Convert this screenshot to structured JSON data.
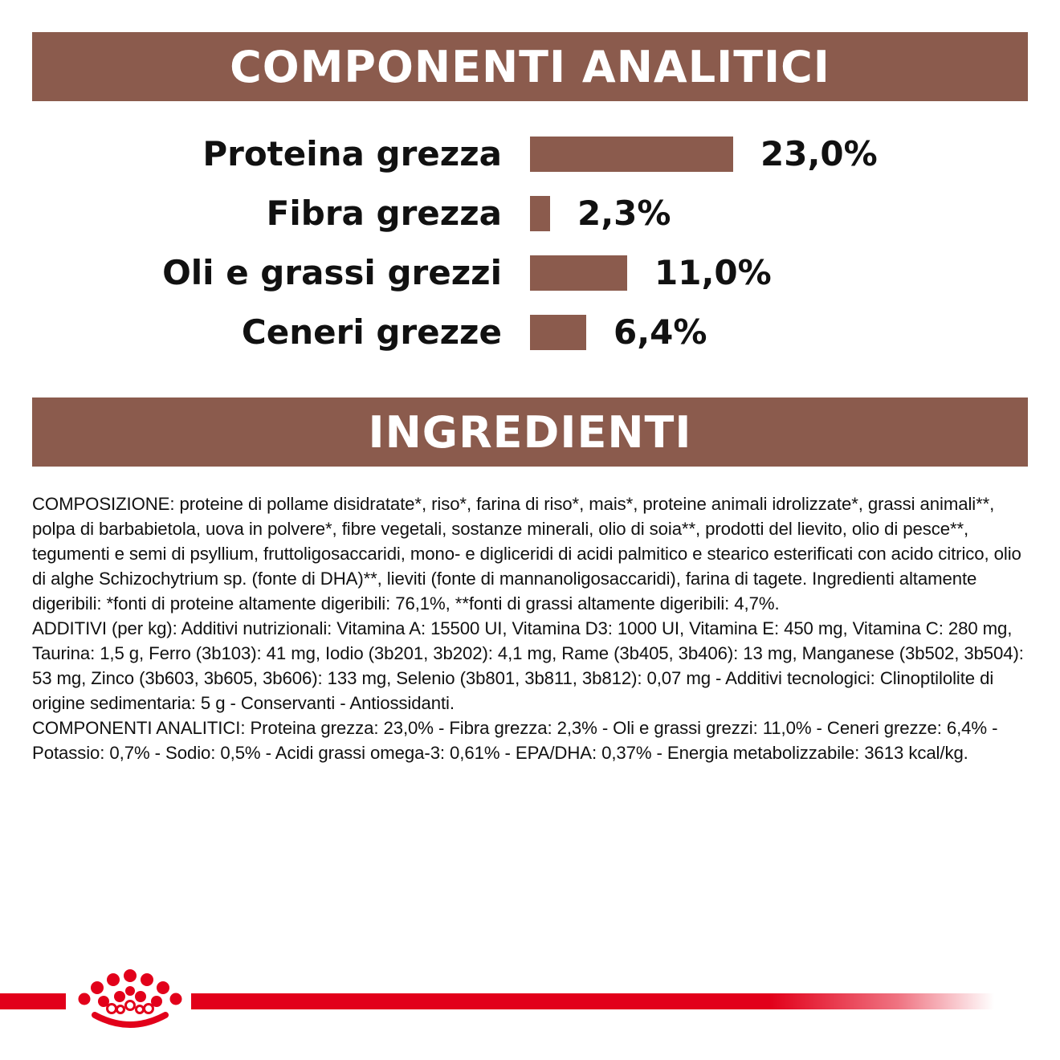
{
  "colors": {
    "banner": "#8b5b4d",
    "bar": "#8b5b4d",
    "brand_red": "#e2001a"
  },
  "analytic": {
    "title": "COMPONENTI ANALITICI",
    "rows": [
      {
        "label": "Proteina grezza",
        "value_text": "23,0%",
        "value": 23.0
      },
      {
        "label": "Fibra grezza",
        "value_text": "2,3%",
        "value": 2.3
      },
      {
        "label": "Oli e grassi grezzi",
        "value_text": "11,0%",
        "value": 11.0
      },
      {
        "label": "Ceneri grezze",
        "value_text": "6,4%",
        "value": 6.4
      }
    ]
  },
  "ingredients": {
    "title": "INGREDIENTI",
    "composition": "COMPOSIZIONE: proteine di pollame disidratate*, riso*, farina di riso*, mais*, proteine animali idrolizzate*, grassi animali**, polpa di barbabietola, uova in polvere*, fibre vegetali, sostanze minerali, olio di soia**, prodotti del lievito, olio di pesce**, tegumenti e semi di psyllium, fruttoligosaccaridi, mono- e digliceridi di acidi palmitico e stearico esterificati con acido citrico, olio di alghe Schizochytrium sp. (fonte di DHA)**, lieviti (fonte di mannanoligosaccaridi), farina di tagete. Ingredienti altamente digeribili: *fonti di proteine altamente digeribili: 76,1%, **fonti di grassi altamente digeribili: 4,7%.",
    "additives": "ADDITIVI (per kg): Additivi nutrizionali: Vitamina A: 15500 UI, Vitamina D3: 1000 UI, Vitamina E: 450 mg, Vitamina C: 280 mg, Taurina: 1,5 g, Ferro (3b103): 41 mg, Iodio (3b201, 3b202): 4,1 mg, Rame (3b405, 3b406): 13 mg, Manganese (3b502, 3b504): 53 mg, Zinco (3b603, 3b605, 3b606): 133 mg, Selenio (3b801, 3b811, 3b812): 0,07 mg - Additivi tecnologici: Clinoptilolite di origine sedimentaria: 5 g - Conservanti - Antiossidanti.",
    "analytic_components": "COMPONENTI ANALITICI: Proteina grezza: 23,0% - Fibra grezza: 2,3% - Oli e grassi grezzi: 11,0% - Ceneri grezze: 6,4% - Potassio: 0,7% - Sodio: 0,5% - Acidi grassi omega-3: 0,61% - EPA/DHA: 0,37% - Energia metabolizzabile: 3613 kcal/kg."
  },
  "footer": {
    "logo_icon": "crown-icon"
  }
}
